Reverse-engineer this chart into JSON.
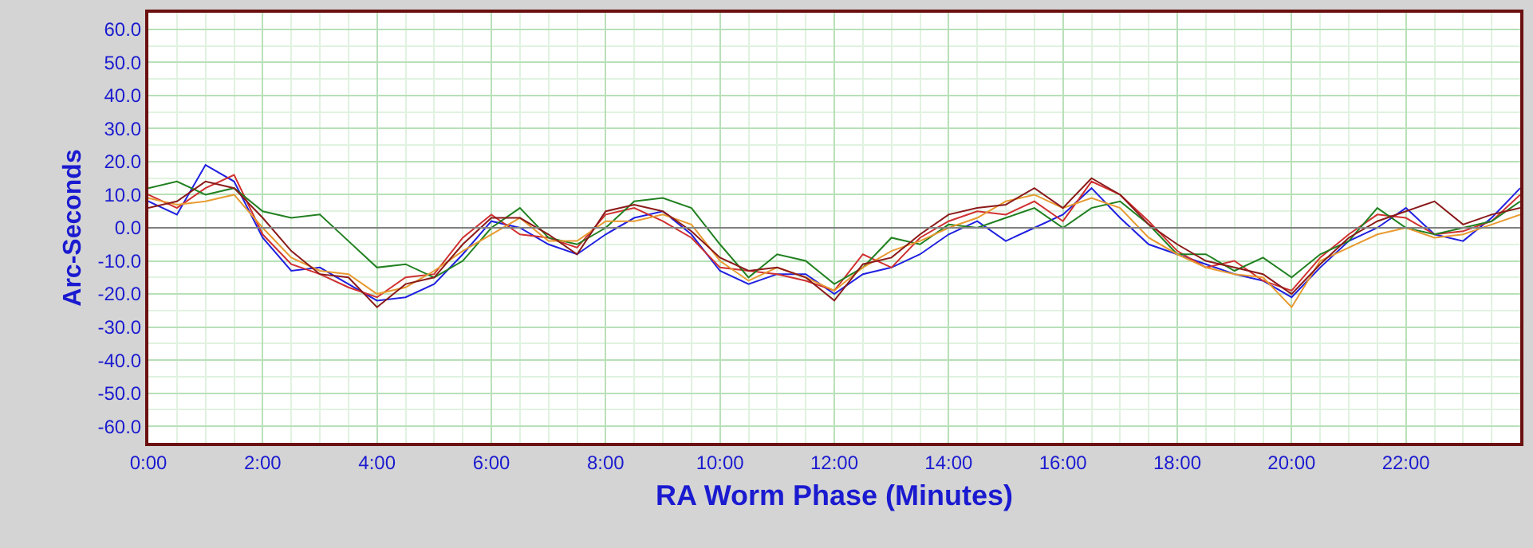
{
  "chart_data": {
    "type": "line",
    "xlabel": "RA Worm Phase (Minutes)",
    "ylabel": "Arc-Seconds",
    "x": [
      0,
      0.5,
      1,
      1.5,
      2,
      2.5,
      3,
      3.5,
      4,
      4.5,
      5,
      5.5,
      6,
      6.5,
      7,
      7.5,
      8,
      8.5,
      9,
      9.5,
      10,
      10.5,
      11,
      11.5,
      12,
      12.5,
      13,
      13.5,
      14,
      14.5,
      15,
      15.5,
      16,
      16.5,
      17,
      17.5,
      18,
      18.5,
      19,
      19.5,
      20,
      20.5,
      21,
      21.5,
      22,
      22.5,
      23,
      23.5,
      24
    ],
    "series": [
      {
        "color": "#2020e0",
        "values": [
          8,
          4,
          19,
          14,
          -3,
          -13,
          -12,
          -17,
          -22,
          -21,
          -17,
          -8,
          2,
          0,
          -5,
          -8,
          -2,
          3,
          5,
          -2,
          -13,
          -17,
          -14,
          -14,
          -20,
          -14,
          -12,
          -8,
          -2,
          2,
          -4,
          0,
          4,
          12,
          3,
          -5,
          -8,
          -11,
          -14,
          -16,
          -21,
          -12,
          -4,
          0,
          6,
          -2,
          -4,
          3,
          12
        ]
      },
      {
        "color": "#d03030",
        "values": [
          10,
          6,
          12,
          16,
          -2,
          -11,
          -14,
          -18,
          -21,
          -15,
          -14,
          -3,
          4,
          -2,
          -3,
          -6,
          4,
          6,
          2,
          -3,
          -12,
          -13,
          -14,
          -16,
          -19,
          -8,
          -12,
          -3,
          2,
          5,
          4,
          8,
          2,
          14,
          10,
          2,
          -7,
          -12,
          -10,
          -16,
          -19,
          -9,
          -2,
          4,
          3,
          -2,
          -1,
          2,
          10
        ]
      },
      {
        "color": "#208020",
        "values": [
          12,
          14,
          10,
          12,
          5,
          3,
          4,
          -4,
          -12,
          -11,
          -15,
          -10,
          0,
          6,
          -3,
          -5,
          0,
          8,
          9,
          6,
          -5,
          -15,
          -8,
          -10,
          -17,
          -12,
          -3,
          -5,
          1,
          0,
          3,
          6,
          0,
          6,
          8,
          1,
          -8,
          -8,
          -13,
          -9,
          -15,
          -8,
          -4,
          6,
          0,
          -2,
          0,
          2,
          8
        ]
      },
      {
        "color": "#e89a30",
        "values": [
          9,
          7,
          8,
          10,
          0,
          -9,
          -13,
          -14,
          -20,
          -18,
          -13,
          -7,
          -2,
          3,
          -4,
          -4,
          2,
          2,
          4,
          1,
          -10,
          -16,
          -12,
          -15,
          -19,
          -12,
          -7,
          -4,
          0,
          3,
          8,
          10,
          6,
          9,
          6,
          -3,
          -8,
          -12,
          -14,
          -15,
          -24,
          -10,
          -6,
          -2,
          0,
          -3,
          -2,
          1,
          4
        ]
      },
      {
        "color": "#8b1a1a",
        "values": [
          6,
          8,
          14,
          12,
          3,
          -7,
          -14,
          -15,
          -24,
          -17,
          -15,
          -5,
          3,
          3,
          -2,
          -8,
          5,
          7,
          5,
          -1,
          -9,
          -13,
          -12,
          -15,
          -22,
          -11,
          -9,
          -2,
          4,
          6,
          7,
          12,
          6,
          15,
          10,
          1,
          -5,
          -10,
          -12,
          -14,
          -20,
          -11,
          -3,
          2,
          5,
          8,
          1,
          4,
          6
        ]
      }
    ],
    "xlim": [
      0,
      24
    ],
    "xticks": [
      {
        "value": 0,
        "label": "0:00"
      },
      {
        "value": 2,
        "label": "2:00"
      },
      {
        "value": 4,
        "label": "4:00"
      },
      {
        "value": 6,
        "label": "6:00"
      },
      {
        "value": 8,
        "label": "8:00"
      },
      {
        "value": 10,
        "label": "10:00"
      },
      {
        "value": 12,
        "label": "12:00"
      },
      {
        "value": 14,
        "label": "14:00"
      },
      {
        "value": 16,
        "label": "16:00"
      },
      {
        "value": 18,
        "label": "18:00"
      },
      {
        "value": 20,
        "label": "20:00"
      },
      {
        "value": 22,
        "label": "22:00"
      }
    ],
    "ylim": [
      -65,
      65
    ],
    "yticks": [
      {
        "value": 60,
        "label": "60.0"
      },
      {
        "value": 50,
        "label": "50.0"
      },
      {
        "value": 40,
        "label": "40.0"
      },
      {
        "value": 30,
        "label": "30.0"
      },
      {
        "value": 20,
        "label": "20.0"
      },
      {
        "value": 10,
        "label": "10.0"
      },
      {
        "value": 0,
        "label": "0.0"
      },
      {
        "value": -10,
        "label": "-10.0"
      },
      {
        "value": -20,
        "label": "-20.0"
      },
      {
        "value": -30,
        "label": "-30.0"
      },
      {
        "value": -40,
        "label": "-40.0"
      },
      {
        "value": -50,
        "label": "-50.0"
      },
      {
        "value": -60,
        "label": "-60.0"
      }
    ],
    "ref_lines": [
      {
        "axis": "y",
        "value": 0,
        "color": "#808080"
      }
    ],
    "grid": true,
    "marker": "none",
    "line_style": "solid"
  }
}
